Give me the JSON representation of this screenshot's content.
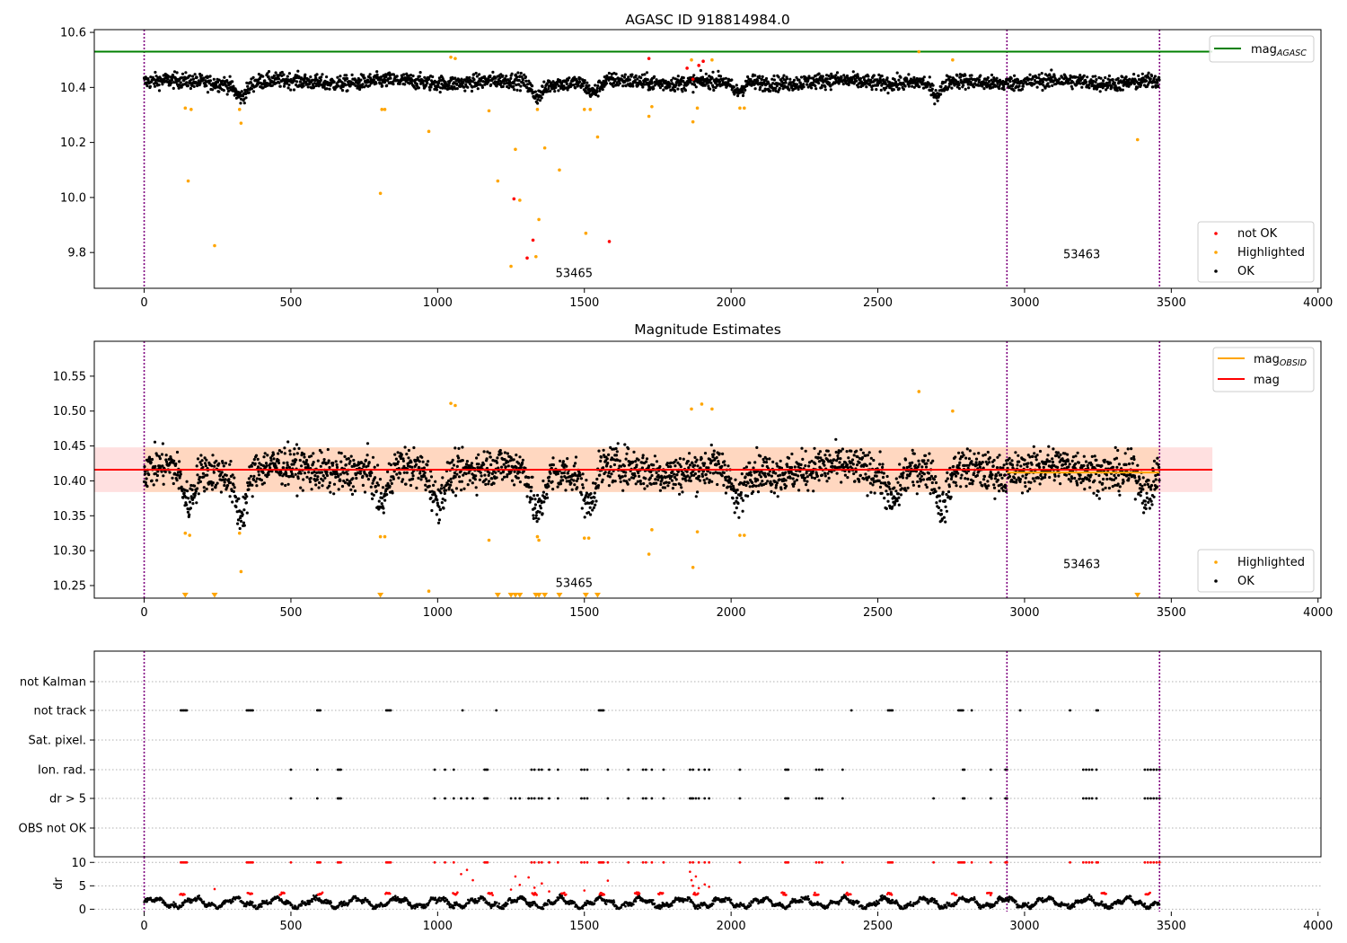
{
  "chart_data": [
    {
      "type": "scatter",
      "title": "AGASC ID 918814984.0",
      "xlim": [
        -170,
        4010
      ],
      "ylim": [
        9.67,
        10.61
      ],
      "xticks": [
        "0",
        "500",
        "1000",
        "1500",
        "2000",
        "2500",
        "3000",
        "3500",
        "4000"
      ],
      "xtick_values": [
        0,
        500,
        1000,
        1500,
        2000,
        2500,
        3000,
        3500,
        4000
      ],
      "yticks": [
        "9.8",
        "10.0",
        "10.2",
        "10.4",
        "10.6"
      ],
      "ytick_values": [
        9.8,
        10.0,
        10.2,
        10.4,
        10.6
      ],
      "mag_agasc": 10.53,
      "mag_agasc_x_range": [
        -170,
        3640
      ],
      "obs_boundaries": [
        0,
        2940,
        3460
      ],
      "obs_labels": [
        {
          "text": "53465",
          "x": 1465,
          "y": 9.71
        },
        {
          "text": "53463",
          "x": 3195,
          "y": 9.78
        }
      ],
      "legend_markers": {
        "entries": [
          "not OK",
          "Highlighted",
          "OK"
        ],
        "colors": [
          "#ff0000",
          "#ffa500",
          "#000000"
        ]
      },
      "legend_lines": {
        "entries": [
          "mag_AGASC"
        ],
        "colors": [
          "#008000"
        ]
      },
      "ok_series": {
        "x_range": [
          0,
          3460
        ],
        "base": 10.42,
        "scatter": 0.025,
        "dips": [
          {
            "x": 330,
            "depth": 0.05
          },
          {
            "x": 1340,
            "depth": 0.05
          },
          {
            "x": 1530,
            "depth": 0.04
          },
          {
            "x": 2020,
            "depth": 0.04
          },
          {
            "x": 2700,
            "depth": 0.05
          }
        ]
      },
      "highlighted": [
        {
          "x": 140,
          "y": 10.325
        },
        {
          "x": 150,
          "y": 10.06
        },
        {
          "x": 160,
          "y": 10.32
        },
        {
          "x": 240,
          "y": 9.825
        },
        {
          "x": 325,
          "y": 10.32
        },
        {
          "x": 330,
          "y": 10.27
        },
        {
          "x": 810,
          "y": 10.32
        },
        {
          "x": 805,
          "y": 10.015
        },
        {
          "x": 820,
          "y": 10.32
        },
        {
          "x": 970,
          "y": 10.24
        },
        {
          "x": 1045,
          "y": 10.51
        },
        {
          "x": 1060,
          "y": 10.505
        },
        {
          "x": 1175,
          "y": 10.315
        },
        {
          "x": 1205,
          "y": 10.06
        },
        {
          "x": 1250,
          "y": 9.75
        },
        {
          "x": 1265,
          "y": 10.175
        },
        {
          "x": 1280,
          "y": 9.99
        },
        {
          "x": 1335,
          "y": 9.785
        },
        {
          "x": 1340,
          "y": 10.32
        },
        {
          "x": 1345,
          "y": 9.92
        },
        {
          "x": 1365,
          "y": 10.18
        },
        {
          "x": 1415,
          "y": 10.1
        },
        {
          "x": 1505,
          "y": 9.87
        },
        {
          "x": 1500,
          "y": 10.32
        },
        {
          "x": 1520,
          "y": 10.32
        },
        {
          "x": 1545,
          "y": 10.22
        },
        {
          "x": 1720,
          "y": 10.295
        },
        {
          "x": 1730,
          "y": 10.33
        },
        {
          "x": 1865,
          "y": 10.5
        },
        {
          "x": 1870,
          "y": 10.275
        },
        {
          "x": 1885,
          "y": 10.325
        },
        {
          "x": 1935,
          "y": 10.5
        },
        {
          "x": 2030,
          "y": 10.325
        },
        {
          "x": 2045,
          "y": 10.325
        },
        {
          "x": 2640,
          "y": 10.53
        },
        {
          "x": 2755,
          "y": 10.5
        },
        {
          "x": 3385,
          "y": 10.21
        }
      ],
      "not_ok": [
        {
          "x": 1260,
          "y": 9.995
        },
        {
          "x": 1305,
          "y": 9.78
        },
        {
          "x": 1325,
          "y": 9.845
        },
        {
          "x": 1585,
          "y": 9.84
        },
        {
          "x": 1720,
          "y": 10.505
        },
        {
          "x": 1850,
          "y": 10.47
        },
        {
          "x": 1870,
          "y": 10.43
        },
        {
          "x": 1890,
          "y": 10.48
        },
        {
          "x": 1905,
          "y": 10.495
        }
      ]
    },
    {
      "type": "scatter",
      "title": "Magnitude Estimates",
      "xlim": [
        -170,
        4010
      ],
      "ylim": [
        10.232,
        10.6
      ],
      "xticks": [
        "0",
        "500",
        "1000",
        "1500",
        "2000",
        "2500",
        "3000",
        "3500",
        "4000"
      ],
      "xtick_values": [
        0,
        500,
        1000,
        1500,
        2000,
        2500,
        3000,
        3500,
        4000
      ],
      "yticks": [
        "10.25",
        "10.30",
        "10.35",
        "10.40",
        "10.45",
        "10.50",
        "10.55"
      ],
      "ytick_values": [
        10.25,
        10.3,
        10.35,
        10.4,
        10.45,
        10.5,
        10.55
      ],
      "mag": 10.416,
      "mag_band": [
        10.384,
        10.448
      ],
      "mag_band_x_range": [
        -170,
        3640
      ],
      "mag_obsid": [
        {
          "x_range": [
            0,
            2940
          ],
          "value": 10.416
        },
        {
          "x_range": [
            2940,
            3460
          ],
          "value": 10.412
        }
      ],
      "obs_boundaries": [
        0,
        2940,
        3460
      ],
      "obs_labels": [
        {
          "text": "53465",
          "x": 1465,
          "y": 10.248
        },
        {
          "text": "53463",
          "x": 3195,
          "y": 10.275
        }
      ],
      "legend_markers": {
        "entries": [
          "Highlighted",
          "OK"
        ],
        "colors": [
          "#ffa500",
          "#000000"
        ]
      },
      "legend_lines": {
        "entries": [
          "mag_OBSID",
          "mag"
        ],
        "colors": [
          "#ffa500",
          "#ff0000"
        ]
      },
      "ok_series": {
        "x_range": [
          0,
          3460
        ],
        "base": 10.416,
        "scatter": 0.025,
        "dips": [
          {
            "x": 150,
            "depth": 0.05
          },
          {
            "x": 330,
            "depth": 0.06
          },
          {
            "x": 810,
            "depth": 0.05
          },
          {
            "x": 1000,
            "depth": 0.04
          },
          {
            "x": 1340,
            "depth": 0.06
          },
          {
            "x": 1515,
            "depth": 0.05
          },
          {
            "x": 2020,
            "depth": 0.05
          },
          {
            "x": 2550,
            "depth": 0.04
          },
          {
            "x": 2720,
            "depth": 0.06
          },
          {
            "x": 3420,
            "depth": 0.04
          }
        ]
      },
      "highlighted": [
        {
          "x": 140,
          "y": 10.325
        },
        {
          "x": 155,
          "y": 10.322
        },
        {
          "x": 325,
          "y": 10.325
        },
        {
          "x": 330,
          "y": 10.27
        },
        {
          "x": 805,
          "y": 10.32
        },
        {
          "x": 820,
          "y": 10.32
        },
        {
          "x": 1045,
          "y": 10.511
        },
        {
          "x": 1060,
          "y": 10.508
        },
        {
          "x": 1175,
          "y": 10.315
        },
        {
          "x": 1340,
          "y": 10.32
        },
        {
          "x": 1345,
          "y": 10.315
        },
        {
          "x": 1500,
          "y": 10.318
        },
        {
          "x": 1515,
          "y": 10.318
        },
        {
          "x": 1720,
          "y": 10.295
        },
        {
          "x": 1730,
          "y": 10.33
        },
        {
          "x": 1865,
          "y": 10.503
        },
        {
          "x": 1870,
          "y": 10.276
        },
        {
          "x": 1885,
          "y": 10.327
        },
        {
          "x": 1900,
          "y": 10.51
        },
        {
          "x": 1935,
          "y": 10.503
        },
        {
          "x": 2030,
          "y": 10.322
        },
        {
          "x": 2045,
          "y": 10.322
        },
        {
          "x": 2640,
          "y": 10.528
        },
        {
          "x": 2755,
          "y": 10.5
        },
        {
          "x": 970,
          "y": 10.242
        }
      ],
      "below_range_x": [
        140,
        240,
        805,
        1205,
        1250,
        1265,
        1280,
        1335,
        1345,
        1365,
        1415,
        1505,
        1545,
        3385
      ]
    },
    {
      "type": "scatter",
      "title": "",
      "xlim": [
        -170,
        4010
      ],
      "xticks": [
        "0",
        "500",
        "1000",
        "1500",
        "2000",
        "2500",
        "3000",
        "3500",
        "4000"
      ],
      "xtick_values": [
        0,
        500,
        1000,
        1500,
        2000,
        2500,
        3000,
        3500,
        4000
      ],
      "flag_labels": [
        "not Kalman",
        "not track",
        "Sat. pixel.",
        "Ion. rad.",
        "dr > 5",
        "OBS not OK"
      ],
      "flags": {
        "not Kalman": [],
        "not track": [
          125,
          130,
          135,
          140,
          145,
          350,
          355,
          360,
          365,
          370,
          590,
          595,
          600,
          825,
          830,
          835,
          840,
          1085,
          1200,
          1550,
          1555,
          1560,
          1565,
          2410,
          2535,
          2540,
          2545,
          2550,
          2775,
          2780,
          2785,
          2790,
          2820,
          2985,
          3155,
          3245,
          3250
        ],
        "Sat. pixel.": [],
        "Ion. rad.": [
          500,
          590,
          660,
          665,
          670,
          990,
          1025,
          1055,
          1160,
          1165,
          1170,
          1320,
          1330,
          1345,
          1355,
          1380,
          1410,
          1490,
          1500,
          1510,
          1580,
          1650,
          1700,
          1710,
          1730,
          1770,
          1860,
          1870,
          1890,
          1910,
          1925,
          2030,
          2185,
          2190,
          2195,
          2290,
          2300,
          2310,
          2380,
          2790,
          2795,
          2885,
          2935,
          2940,
          3200,
          3210,
          3220,
          3230,
          3245,
          3410,
          3420,
          3430,
          3440,
          3450,
          3460
        ],
        "dr > 5": [
          500,
          590,
          660,
          665,
          670,
          990,
          1025,
          1055,
          1080,
          1100,
          1120,
          1160,
          1165,
          1170,
          1250,
          1265,
          1280,
          1310,
          1320,
          1330,
          1345,
          1355,
          1380,
          1410,
          1490,
          1500,
          1510,
          1580,
          1650,
          1700,
          1710,
          1730,
          1770,
          1860,
          1865,
          1870,
          1880,
          1890,
          1910,
          1925,
          2030,
          2185,
          2190,
          2195,
          2290,
          2300,
          2310,
          2380,
          2690,
          2790,
          2795,
          2885,
          2935,
          2940,
          3200,
          3210,
          3220,
          3230,
          3245,
          3410,
          3420,
          3430,
          3440,
          3450,
          3460
        ],
        "OBS not OK": []
      },
      "obs_boundaries": [
        0,
        2940,
        3460
      ]
    },
    {
      "type": "scatter",
      "title": "",
      "ylabel": "dr",
      "xlim": [
        -170,
        4010
      ],
      "ylim": [
        -0.5,
        11.2
      ],
      "xticks": [
        "0",
        "500",
        "1000",
        "1500",
        "2000",
        "2500",
        "3000",
        "3500",
        "4000"
      ],
      "xtick_values": [
        0,
        500,
        1000,
        1500,
        2000,
        2500,
        3000,
        3500,
        4000
      ],
      "yticks": [
        "0",
        "5",
        "10"
      ],
      "ytick_values": [
        0,
        5,
        10
      ],
      "dr_threshold": 5,
      "obs_boundaries": [
        0,
        2940,
        3460
      ],
      "ok_base": 1.4,
      "red_at_10": [
        125,
        130,
        135,
        140,
        145,
        350,
        355,
        360,
        365,
        370,
        500,
        590,
        595,
        600,
        660,
        665,
        670,
        825,
        830,
        835,
        840,
        990,
        1025,
        1055,
        1160,
        1165,
        1170,
        1320,
        1330,
        1345,
        1355,
        1380,
        1410,
        1490,
        1500,
        1510,
        1550,
        1555,
        1560,
        1565,
        1580,
        1650,
        1700,
        1710,
        1730,
        1770,
        1860,
        1870,
        1890,
        1910,
        1925,
        2030,
        2185,
        2190,
        2195,
        2290,
        2300,
        2310,
        2380,
        2535,
        2540,
        2545,
        2550,
        2690,
        2775,
        2780,
        2785,
        2790,
        2795,
        2820,
        2885,
        2935,
        2940,
        3155,
        3200,
        3210,
        3220,
        3230,
        3245,
        3250,
        3410,
        3420,
        3430,
        3440,
        3450,
        3460
      ],
      "red_scatter": [
        {
          "x": 1080,
          "y": 7.5
        },
        {
          "x": 1100,
          "y": 8.4
        },
        {
          "x": 1120,
          "y": 6.2
        },
        {
          "x": 1250,
          "y": 4.2
        },
        {
          "x": 1265,
          "y": 7.0
        },
        {
          "x": 1280,
          "y": 5.2
        },
        {
          "x": 1310,
          "y": 6.8
        },
        {
          "x": 1330,
          "y": 4.6
        },
        {
          "x": 1355,
          "y": 5.5
        },
        {
          "x": 1380,
          "y": 3.8
        },
        {
          "x": 1500,
          "y": 4.0
        },
        {
          "x": 1580,
          "y": 6.1
        },
        {
          "x": 1860,
          "y": 8.0
        },
        {
          "x": 1865,
          "y": 6.2
        },
        {
          "x": 1870,
          "y": 5.0
        },
        {
          "x": 1880,
          "y": 7.0
        },
        {
          "x": 1890,
          "y": 4.5
        },
        {
          "x": 1910,
          "y": 5.3
        },
        {
          "x": 1925,
          "y": 4.8
        },
        {
          "x": 240,
          "y": 4.3
        }
      ],
      "red_low_clusters": [
        130,
        360,
        470,
        600,
        830,
        1060,
        1180,
        1330,
        1430,
        1560,
        1680,
        1760,
        1880,
        2180,
        2290,
        2400,
        2540,
        2760,
        2880,
        3270,
        3420
      ]
    }
  ]
}
